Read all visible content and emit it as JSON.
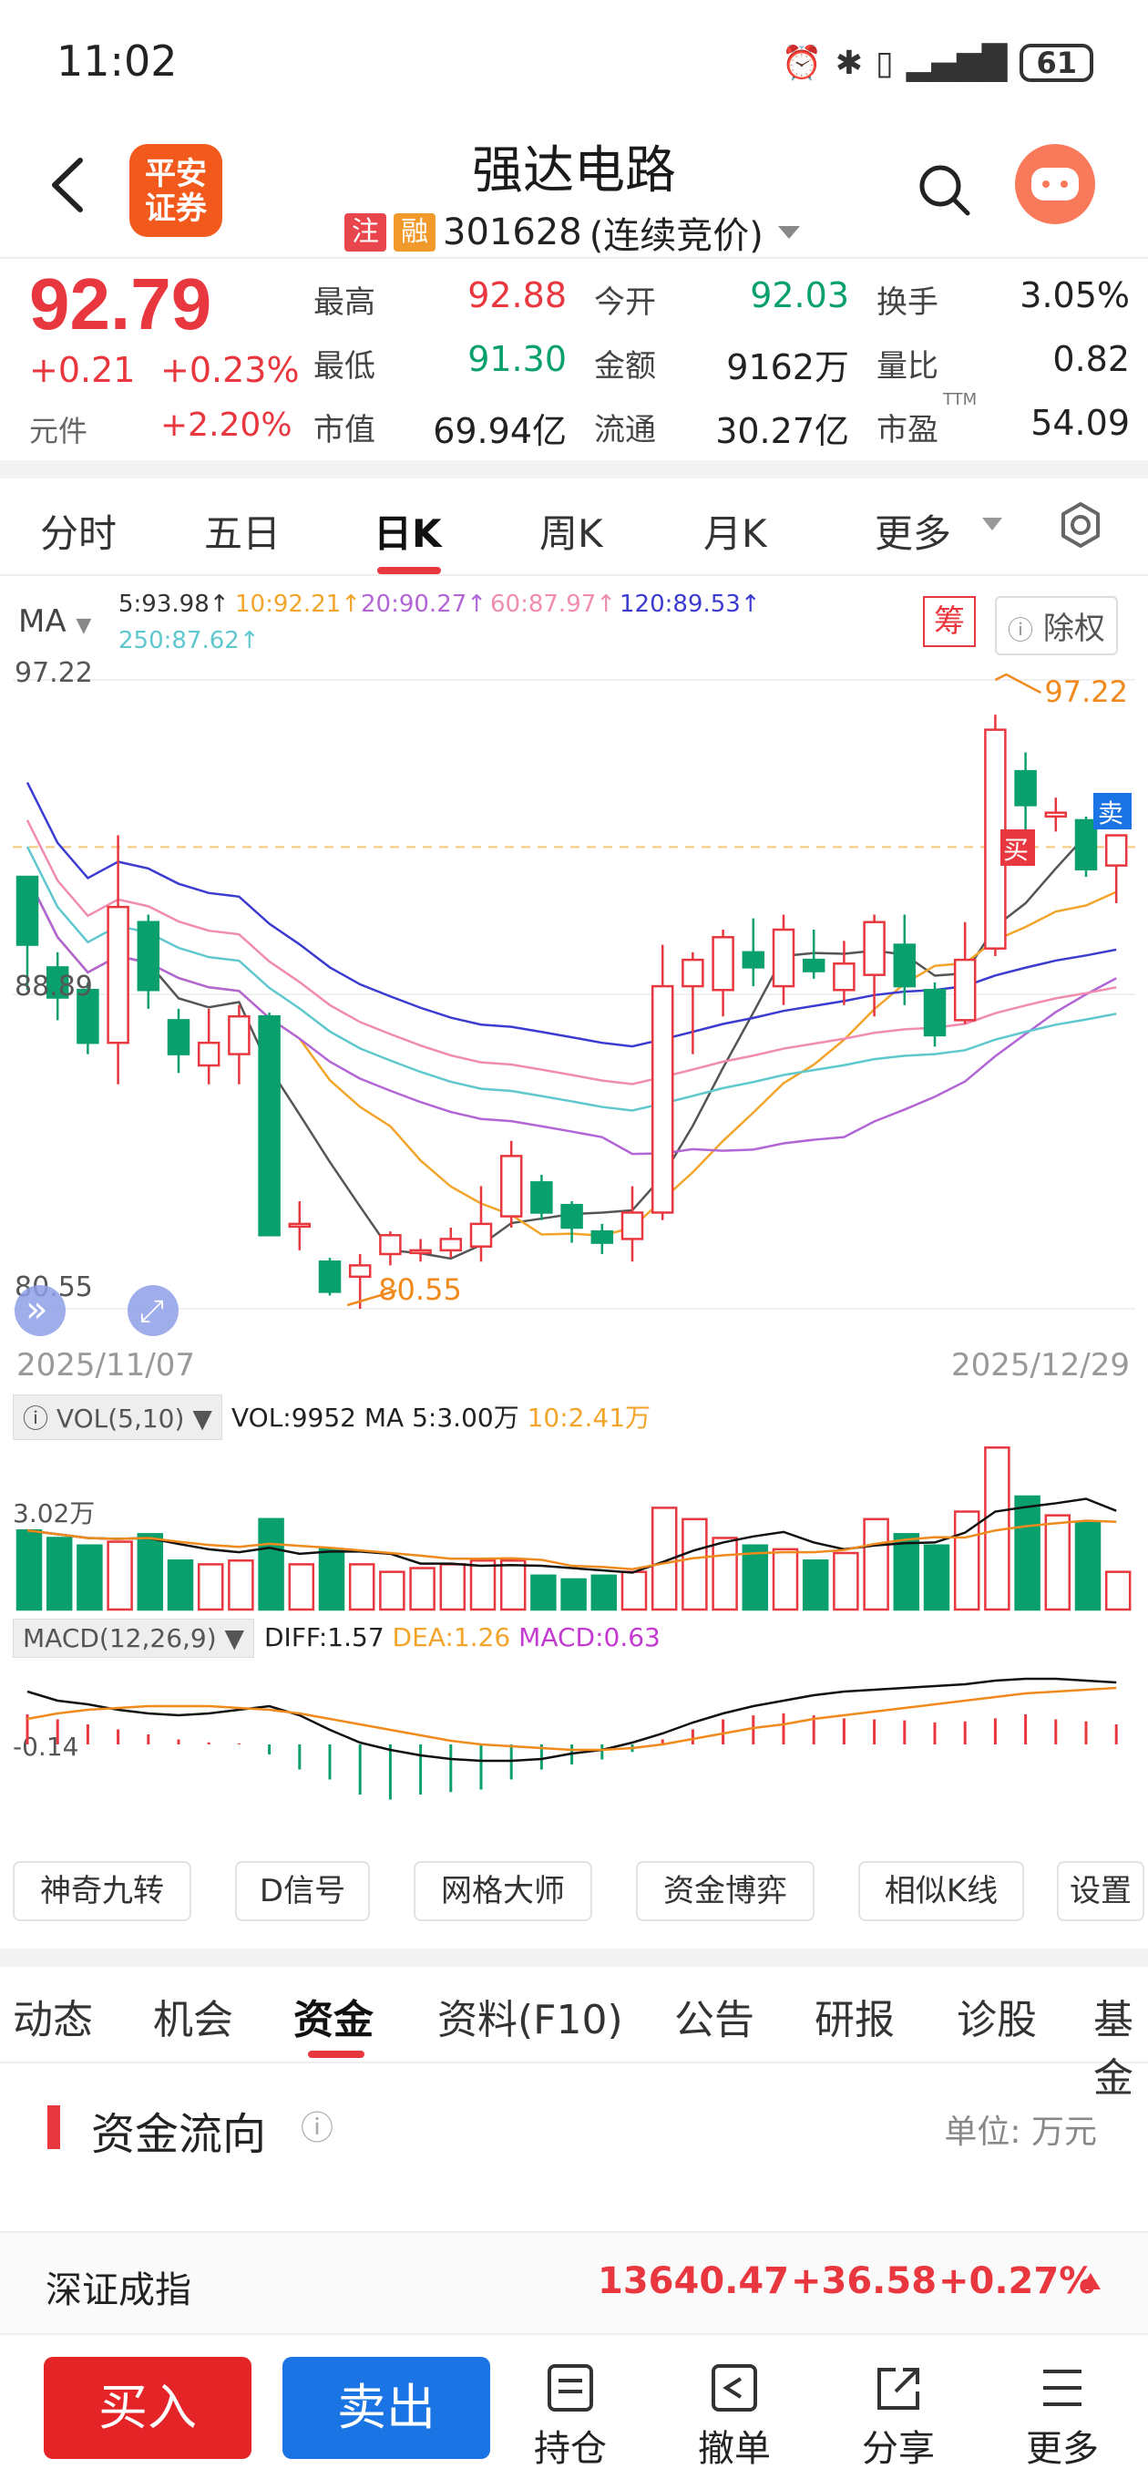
{
  "status": {
    "time": "11:02",
    "battery": "61"
  },
  "header": {
    "broker_logo": "平安\n证券",
    "stock_name": "强达电路",
    "tag_zhu": "注",
    "tag_rong": "融",
    "stock_code": "301628",
    "trading_mode": "(连续竞价)"
  },
  "quote": {
    "price": "92.79",
    "change_abs": "+0.21",
    "change_pct": "+0.23%",
    "unit": "元件",
    "unit_pct": "+2.20%",
    "rows": [
      [
        {
          "label": "最高",
          "value": "92.88",
          "color": "red"
        },
        {
          "label": "今开",
          "value": "92.03",
          "color": "green"
        },
        {
          "label": "换手",
          "value": "3.05%",
          "color": "dark"
        }
      ],
      [
        {
          "label": "最低",
          "value": "91.30",
          "color": "green"
        },
        {
          "label": "金额",
          "value": "9162万",
          "color": "dark"
        },
        {
          "label": "量比",
          "value": "0.82",
          "color": "dark"
        }
      ],
      [
        {
          "label": "市值",
          "value": "69.94亿",
          "color": "dark"
        },
        {
          "label": "流通",
          "value": "30.27亿",
          "color": "dark"
        },
        {
          "label": "市盈",
          "value": "54.09",
          "color": "dark"
        }
      ]
    ],
    "pe_mark": "TTM"
  },
  "chart_tabs": [
    "分时",
    "五日",
    "日K",
    "周K",
    "月K",
    "更多"
  ],
  "ma": {
    "label": "MA",
    "items": [
      {
        "text": "5:93.98↑",
        "color": "#333333"
      },
      {
        "text": "10:92.21↑",
        "color": "#f2a52a"
      },
      {
        "text": "20:90.27↑",
        "color": "#b266d6"
      },
      {
        "text": "60:87.97↑",
        "color": "#f08cb2"
      },
      {
        "text": "120:89.53↑",
        "color": "#3b3bd0"
      },
      {
        "text": "250:87.62↑",
        "color": "#5fc8cf"
      }
    ],
    "chou": "筹",
    "exright": "除权"
  },
  "kline": {
    "y_top": "97.22",
    "y_mid": "88.89",
    "y_bot": "80.55",
    "high_label": "97.22",
    "low_label": "80.55",
    "buy_mark": "买",
    "sell_mark": "卖",
    "date_start": "2025/11/07",
    "date_end": "2025/12/29"
  },
  "vol": {
    "box": "VOL(5,10)",
    "text": "VOL:9952 MA 5:3.00万",
    "ma10": "10:2.41万",
    "axis": "3.02万"
  },
  "macd": {
    "box": "MACD(12,26,9)",
    "diff": "DIFF:1.57",
    "dea": "DEA:1.26",
    "macd": "MACD:0.63",
    "axis": "-0.14"
  },
  "tools": [
    "神奇九转",
    "D信号",
    "网格大师",
    "资金博弈",
    "相似K线",
    "设置"
  ],
  "info_tabs": [
    "动态",
    "机会",
    "资金",
    "资料(F10)",
    "公告",
    "研报",
    "诊股",
    "基金"
  ],
  "fund_flow": {
    "title": "资金流向",
    "unit": "单位: 万元"
  },
  "index_bar": {
    "name": "深证成指",
    "value": "13640.47",
    "change": "+36.58",
    "pct": "+0.27%"
  },
  "bottom": {
    "buy": "买入",
    "sell": "卖出",
    "items": [
      "持仓",
      "撤单",
      "分享",
      "更多"
    ]
  },
  "chart_data": {
    "type": "candlestick",
    "ylim": [
      80.55,
      97.22
    ],
    "x": [
      "2025/11/07",
      "2025/12/29"
    ],
    "candles": [
      {
        "o": 90.2,
        "c": 92.0,
        "h": 92.0,
        "l": 89.0,
        "dir": "down"
      },
      {
        "o": 89.6,
        "c": 88.8,
        "h": 90.0,
        "l": 88.2,
        "dir": "down"
      },
      {
        "o": 89.0,
        "c": 87.6,
        "h": 89.2,
        "l": 87.3,
        "dir": "down"
      },
      {
        "o": 87.6,
        "c": 91.2,
        "h": 93.1,
        "l": 86.5,
        "dir": "up"
      },
      {
        "o": 90.8,
        "c": 89.0,
        "h": 91.0,
        "l": 88.5,
        "dir": "down"
      },
      {
        "o": 88.2,
        "c": 87.3,
        "h": 88.5,
        "l": 86.8,
        "dir": "down"
      },
      {
        "o": 87.0,
        "c": 87.6,
        "h": 88.5,
        "l": 86.5,
        "dir": "up"
      },
      {
        "o": 87.3,
        "c": 88.3,
        "h": 88.6,
        "l": 86.5,
        "dir": "up"
      },
      {
        "o": 88.3,
        "c": 82.5,
        "h": 88.4,
        "l": 82.5,
        "dir": "down"
      },
      {
        "o": 82.8,
        "c": 82.8,
        "h": 83.4,
        "l": 82.1,
        "dir": "flat"
      },
      {
        "o": 81.8,
        "c": 81.0,
        "h": 81.9,
        "l": 80.9,
        "dir": "down"
      },
      {
        "o": 81.4,
        "c": 81.7,
        "h": 82.0,
        "l": 80.55,
        "dir": "up"
      },
      {
        "o": 82.0,
        "c": 82.5,
        "h": 82.6,
        "l": 81.7,
        "dir": "up"
      },
      {
        "o": 82.1,
        "c": 82.1,
        "h": 82.4,
        "l": 81.8,
        "dir": "flat"
      },
      {
        "o": 82.4,
        "c": 82.1,
        "h": 82.7,
        "l": 81.9,
        "dir": "up"
      },
      {
        "o": 82.2,
        "c": 82.8,
        "h": 83.8,
        "l": 81.8,
        "dir": "up"
      },
      {
        "o": 83.0,
        "c": 84.6,
        "h": 85.0,
        "l": 82.7,
        "dir": "up"
      },
      {
        "o": 83.9,
        "c": 83.1,
        "h": 84.1,
        "l": 82.9,
        "dir": "down"
      },
      {
        "o": 83.3,
        "c": 82.7,
        "h": 83.4,
        "l": 82.3,
        "dir": "down"
      },
      {
        "o": 82.6,
        "c": 82.3,
        "h": 82.8,
        "l": 82.0,
        "dir": "down"
      },
      {
        "o": 82.4,
        "c": 83.1,
        "h": 83.8,
        "l": 81.8,
        "dir": "up"
      },
      {
        "o": 83.1,
        "c": 89.1,
        "h": 90.2,
        "l": 82.9,
        "dir": "up"
      },
      {
        "o": 89.1,
        "c": 89.8,
        "h": 90.0,
        "l": 87.3,
        "dir": "up"
      },
      {
        "o": 89.0,
        "c": 90.4,
        "h": 90.6,
        "l": 88.3,
        "dir": "up"
      },
      {
        "o": 90.0,
        "c": 89.6,
        "h": 90.9,
        "l": 89.1,
        "dir": "down"
      },
      {
        "o": 89.1,
        "c": 90.6,
        "h": 91.0,
        "l": 88.6,
        "dir": "up"
      },
      {
        "o": 89.8,
        "c": 89.5,
        "h": 90.6,
        "l": 89.3,
        "dir": "down"
      },
      {
        "o": 89.0,
        "c": 89.7,
        "h": 90.3,
        "l": 88.6,
        "dir": "up"
      },
      {
        "o": 89.4,
        "c": 90.8,
        "h": 91.0,
        "l": 88.3,
        "dir": "up"
      },
      {
        "o": 90.2,
        "c": 89.1,
        "h": 91.0,
        "l": 88.6,
        "dir": "down"
      },
      {
        "o": 89.0,
        "c": 87.8,
        "h": 89.2,
        "l": 87.5,
        "dir": "down"
      },
      {
        "o": 88.2,
        "c": 89.8,
        "h": 90.8,
        "l": 88.1,
        "dir": "up"
      },
      {
        "o": 90.1,
        "c": 95.9,
        "h": 96.3,
        "l": 89.9,
        "dir": "up"
      },
      {
        "o": 94.8,
        "c": 93.9,
        "h": 95.3,
        "l": 93.1,
        "dir": "down"
      },
      {
        "o": 93.6,
        "c": 93.7,
        "h": 94.1,
        "l": 93.2,
        "dir": "flat"
      },
      {
        "o": 93.5,
        "c": 92.2,
        "h": 93.6,
        "l": 92.0,
        "dir": "down"
      },
      {
        "o": 92.3,
        "c": 93.1,
        "h": 93.1,
        "l": 91.3,
        "dir": "up"
      }
    ]
  }
}
